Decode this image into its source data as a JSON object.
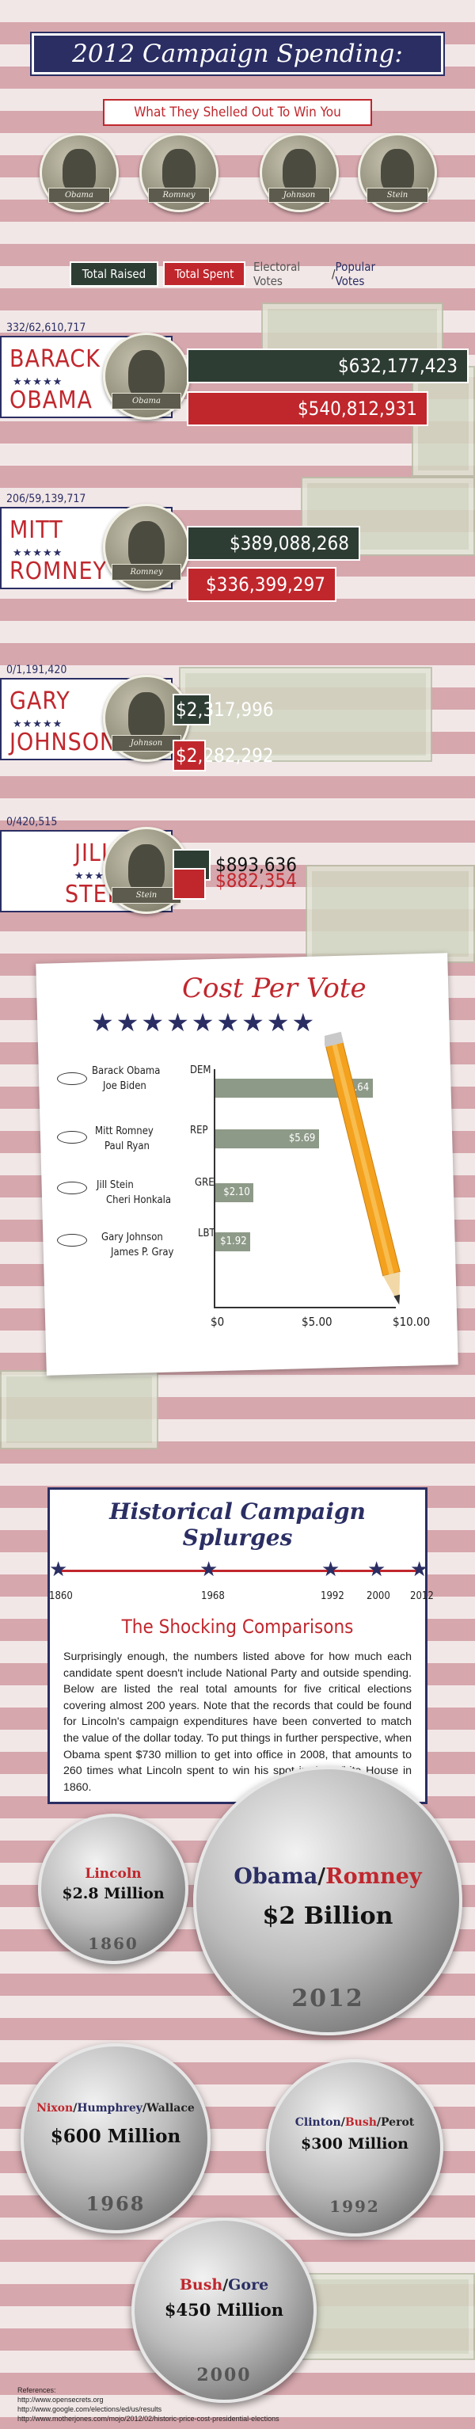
{
  "header": {
    "title": "2012 Campaign Spending:",
    "subtitle": "What They Shelled Out To Win You"
  },
  "header_coins": [
    {
      "ribbon": "Obama"
    },
    {
      "ribbon": "Romney"
    },
    {
      "ribbon": "Johnson"
    },
    {
      "ribbon": "Stein"
    }
  ],
  "legend": {
    "raised": "Total Raised",
    "spent": "Total Spent",
    "electoral": "Electoral Votes",
    "slash": "/",
    "popular": "Popular Votes"
  },
  "colors": {
    "raised": "#2e3d34",
    "spent": "#c0272d",
    "navy": "#2a2e63"
  },
  "candidates": [
    {
      "votes": "332/62,610,717",
      "first": "BARACK",
      "last": "OBAMA",
      "stars": "★★★★★",
      "ribbon": "Obama",
      "raised_label": "$632,177,423",
      "spent_label": "$540,812,931"
    },
    {
      "votes": "206/59,139,717",
      "first": "MITT",
      "last": "ROMNEY",
      "stars": "★★★★★",
      "ribbon": "Romney",
      "raised_label": "$389,088,268",
      "spent_label": "$336,399,297"
    },
    {
      "votes": "0/1,191,420",
      "first": "GARY",
      "last": "JOHNSON",
      "stars": "★★★★★",
      "ribbon": "Johnson",
      "raised_label": "$2,317,996",
      "spent_label": "$2,282,292"
    },
    {
      "votes": "0/420,515",
      "first": "JILL",
      "last": "STEIN",
      "stars": "★★★",
      "ribbon": "Stein",
      "raised_label": "$893,636",
      "spent_label": "$882,354"
    }
  ],
  "cost_per_vote": {
    "title": "Cost Per Vote",
    "stars": "★★★★★★★★★",
    "rows": [
      {
        "name1": "Barack Obama",
        "name2": "Joe Biden",
        "party": "DEM",
        "label": "$8.64"
      },
      {
        "name1": "Mitt Romney",
        "name2": "Paul Ryan",
        "party": "REP",
        "label": "$5.69"
      },
      {
        "name1": "Jill Stein",
        "name2": "Cheri Honkala",
        "party": "GRE",
        "label": "$2.10"
      },
      {
        "name1": "Gary Johnson",
        "name2": "James P. Gray",
        "party": "LBT",
        "label": "$1.92"
      }
    ],
    "ticks": [
      "$0",
      "$5.00",
      "$10.00"
    ]
  },
  "historical": {
    "title": "Historical Campaign Splurges",
    "years": [
      "1860",
      "1968",
      "1992",
      "2000",
      "2012"
    ],
    "subtitle": "The Shocking Comparisons",
    "body": "Surprisingly enough, the numbers listed above for how much each candidate spent doesn't include National Party and outside spending. Below are listed the real total amounts for five critical elections covering almost 200 years. Note that the records that could be found for Lincoln's campaign expenditures have been converted to match the value of the dollar today. To put things in further perspective, when Obama spent $730 million to get into office in 2008, that amounts to 260 times what Lincoln spent to win his spot in the White House in 1860."
  },
  "big_coins": {
    "lincoln": {
      "name": "Lincoln",
      "amount": "$2.8 Million",
      "year": "1860"
    },
    "obama_romney": {
      "n1": "Obama",
      "sep": "/",
      "n2": "Romney",
      "amount": "$2 Billion",
      "year": "2012"
    },
    "nixon": {
      "n1": "Nixon",
      "s1": "/",
      "n2": "Humphrey",
      "s2": "/",
      "n3": "Wallace",
      "amount": "$600 Million",
      "year": "1968"
    },
    "clinton": {
      "n1": "Clinton",
      "s1": "/",
      "n2": "Bush",
      "s2": "/",
      "n3": "Perot",
      "amount": "$300 Million",
      "year": "1992"
    },
    "bush_gore": {
      "n1": "Bush",
      "sep": "/",
      "n2": "Gore",
      "amount": "$450 Million",
      "year": "2000"
    }
  },
  "references": {
    "label": "References:",
    "lines": [
      "http://www.opensecrets.org",
      "http://www.google.com/elections/ed/us/results",
      "http://www.motherjones.com/mojo/2012/02/historic-price-cost-presidential-elections"
    ]
  },
  "chart_data": [
    {
      "type": "bar",
      "title": "2012 Campaign Spending:",
      "subtitle": "What They Shelled Out To Win You",
      "categories": [
        "BARACK OBAMA",
        "MITT ROMNEY",
        "GARY JOHNSON",
        "JILL STEIN"
      ],
      "series": [
        {
          "name": "Total Raised",
          "values": [
            632177423,
            389088268,
            2317996,
            893636
          ]
        },
        {
          "name": "Total Spent",
          "values": [
            540812931,
            336399297,
            2282292,
            882354
          ]
        }
      ],
      "electoral_votes": [
        332,
        206,
        0,
        0
      ],
      "popular_votes": [
        62610717,
        59139717,
        1191420,
        420515
      ]
    },
    {
      "type": "bar",
      "orientation": "horizontal",
      "title": "Cost Per Vote",
      "categories": [
        "DEM",
        "REP",
        "GRE",
        "LBT"
      ],
      "values": [
        8.64,
        5.69,
        2.1,
        1.92
      ],
      "xlim": [
        0,
        10
      ],
      "x_ticks": [
        "$0",
        "$5.00",
        "$10.00"
      ]
    },
    {
      "type": "table",
      "title": "Historical Campaign Splurges",
      "rows": [
        {
          "year": "1860",
          "candidates": "Lincoln",
          "amount": "$2.8 Million"
        },
        {
          "year": "1968",
          "candidates": "Nixon/Humphrey/Wallace",
          "amount": "$600 Million"
        },
        {
          "year": "1992",
          "candidates": "Clinton/Bush/Perot",
          "amount": "$300 Million"
        },
        {
          "year": "2000",
          "candidates": "Bush/Gore",
          "amount": "$450 Million"
        },
        {
          "year": "2012",
          "candidates": "Obama/Romney",
          "amount": "$2 Billion"
        }
      ]
    }
  ]
}
